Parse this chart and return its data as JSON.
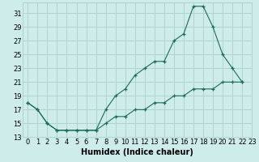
{
  "xlabel": "Humidex (Indice chaleur)",
  "ylabel": "",
  "bg_color": "#ceecea",
  "grid_color": "#afd4d0",
  "line_color": "#1a6b5a",
  "marker": "+",
  "upper_x": [
    0,
    1,
    2,
    3,
    4,
    5,
    6,
    7,
    8,
    9,
    10,
    11,
    12,
    13,
    14,
    15,
    16,
    17,
    18,
    19,
    20,
    21,
    22
  ],
  "upper_y": [
    18,
    17,
    15,
    14,
    14,
    14,
    14,
    14,
    17,
    19,
    20,
    22,
    23,
    24,
    24,
    27,
    28,
    32,
    32,
    29,
    25,
    23,
    21
  ],
  "lower_x": [
    0,
    1,
    2,
    3,
    4,
    5,
    6,
    7,
    8,
    9,
    10,
    11,
    12,
    13,
    14,
    15,
    16,
    17,
    18,
    19,
    20,
    21,
    22
  ],
  "lower_y": [
    18,
    17,
    15,
    14,
    14,
    14,
    14,
    14,
    15,
    16,
    16,
    17,
    17,
    18,
    18,
    19,
    19,
    20,
    20,
    20,
    21,
    21,
    21
  ],
  "xlim": [
    -0.5,
    23
  ],
  "ylim": [
    13,
    32.5
  ],
  "yticks": [
    13,
    15,
    17,
    19,
    21,
    23,
    25,
    27,
    29,
    31
  ],
  "xticks": [
    0,
    1,
    2,
    3,
    4,
    5,
    6,
    7,
    8,
    9,
    10,
    11,
    12,
    13,
    14,
    15,
    16,
    17,
    18,
    19,
    20,
    21,
    22,
    23
  ],
  "fontsize": 6.0,
  "xlabel_fontsize": 7.0,
  "lw": 0.8,
  "ms": 3.5,
  "mew": 0.9
}
